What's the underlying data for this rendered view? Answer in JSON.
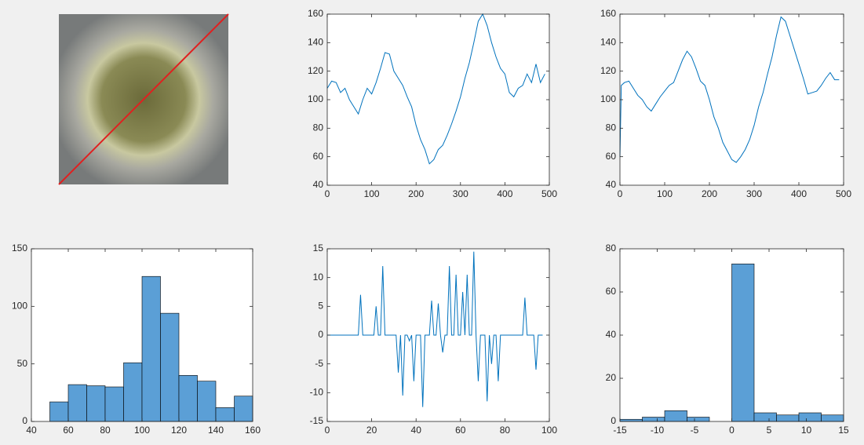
{
  "chart_data": [
    {
      "type": "line",
      "color": "#0072bd",
      "x": [
        0,
        10,
        20,
        30,
        40,
        50,
        60,
        70,
        80,
        90,
        100,
        110,
        120,
        130,
        140,
        150,
        160,
        170,
        180,
        190,
        200,
        210,
        220,
        230,
        240,
        250,
        260,
        270,
        280,
        290,
        300,
        310,
        320,
        330,
        340,
        350,
        360,
        370,
        380,
        390,
        400,
        410,
        420,
        430,
        440,
        450,
        460,
        470,
        480,
        490
      ],
      "values": [
        108,
        113,
        112,
        105,
        108,
        100,
        95,
        90,
        100,
        108,
        104,
        112,
        122,
        133,
        132,
        120,
        115,
        110,
        102,
        95,
        82,
        72,
        65,
        55,
        58,
        65,
        68,
        75,
        83,
        92,
        102,
        115,
        126,
        140,
        155,
        160,
        152,
        140,
        130,
        122,
        118,
        105,
        102,
        108,
        110,
        118,
        112,
        125,
        112,
        118
      ],
      "xlim": [
        0,
        500
      ],
      "xticks": [
        0,
        100,
        200,
        300,
        400,
        500
      ],
      "ylim": [
        40,
        160
      ],
      "yticks": [
        40,
        60,
        80,
        100,
        120,
        140,
        160
      ]
    },
    {
      "type": "line",
      "color": "#0072bd",
      "x": [
        0,
        3,
        10,
        20,
        30,
        40,
        50,
        60,
        70,
        80,
        90,
        100,
        110,
        120,
        130,
        140,
        150,
        160,
        170,
        180,
        190,
        200,
        210,
        220,
        230,
        240,
        250,
        260,
        270,
        280,
        290,
        300,
        310,
        320,
        330,
        340,
        350,
        360,
        370,
        380,
        390,
        400,
        410,
        420,
        430,
        440,
        450,
        460,
        470,
        480,
        490
      ],
      "values": [
        60,
        110,
        112,
        113,
        108,
        103,
        100,
        95,
        92,
        97,
        102,
        106,
        110,
        112,
        120,
        128,
        134,
        130,
        122,
        113,
        110,
        100,
        88,
        80,
        70,
        64,
        58,
        56,
        60,
        65,
        72,
        82,
        95,
        105,
        118,
        130,
        145,
        158,
        155,
        145,
        135,
        125,
        115,
        104,
        105,
        106,
        110,
        115,
        119,
        114,
        114
      ],
      "xlim": [
        0,
        500
      ],
      "xticks": [
        0,
        100,
        200,
        300,
        400,
        500
      ],
      "ylim": [
        40,
        160
      ],
      "yticks": [
        40,
        60,
        80,
        100,
        120,
        140,
        160
      ]
    },
    {
      "type": "histogram",
      "color": "#5b9fd6",
      "bins": [
        50,
        60,
        70,
        80,
        90,
        100,
        110,
        120,
        130,
        140,
        150,
        160
      ],
      "values": [
        17,
        32,
        31,
        30,
        51,
        126,
        94,
        40,
        35,
        12,
        22
      ],
      "xlim": [
        40,
        160
      ],
      "xticks": [
        40,
        60,
        80,
        100,
        120,
        140,
        160
      ],
      "ylim": [
        0,
        150
      ],
      "yticks": [
        0,
        50,
        100,
        150
      ]
    },
    {
      "type": "line",
      "color": "#0072bd",
      "x": [
        0,
        1,
        2,
        3,
        4,
        5,
        6,
        7,
        8,
        9,
        10,
        11,
        12,
        13,
        14,
        15,
        16,
        17,
        18,
        19,
        20,
        21,
        22,
        23,
        24,
        25,
        26,
        27,
        28,
        29,
        30,
        31,
        32,
        33,
        34,
        35,
        36,
        37,
        38,
        39,
        40,
        41,
        42,
        43,
        44,
        45,
        46,
        47,
        48,
        49,
        50,
        51,
        52,
        53,
        54,
        55,
        56,
        57,
        58,
        59,
        60,
        61,
        62,
        63,
        64,
        65,
        66,
        67,
        68,
        69,
        70,
        71,
        72,
        73,
        74,
        75,
        76,
        77,
        78,
        79,
        80,
        81,
        82,
        83,
        84,
        85,
        86,
        87,
        88,
        89,
        90,
        91,
        92,
        93,
        94,
        95,
        96,
        97
      ],
      "values": [
        0,
        0,
        0,
        0,
        0,
        0,
        0,
        0,
        0,
        0,
        0,
        0,
        0,
        0,
        0,
        7,
        0,
        0,
        0,
        0,
        0,
        0,
        5,
        0,
        0,
        12,
        0,
        0,
        0,
        0,
        0,
        0,
        -6.5,
        0,
        -10.5,
        0,
        0,
        -1,
        0,
        -8,
        0,
        0,
        0,
        -12.5,
        0,
        0,
        0,
        6,
        0,
        0,
        5.5,
        0,
        -3,
        0,
        0,
        12,
        0,
        0,
        10.5,
        0,
        0,
        7.5,
        0,
        10.5,
        0,
        0,
        14.5,
        0,
        -8,
        0,
        0,
        0,
        -11.5,
        0,
        -5,
        0,
        0,
        -8,
        0,
        0,
        0,
        0,
        0,
        0,
        0,
        0,
        0,
        0,
        0,
        6.5,
        0,
        0,
        0,
        0,
        -6,
        0,
        0,
        0
      ],
      "xlim": [
        0,
        100
      ],
      "xticks": [
        0,
        20,
        40,
        60,
        80,
        100
      ],
      "ylim": [
        -15,
        15
      ],
      "yticks": [
        -15,
        -10,
        -5,
        0,
        5,
        10,
        15
      ]
    },
    {
      "type": "histogram",
      "color": "#5b9fd6",
      "bins": [
        -15,
        -12,
        -9,
        -6,
        -3,
        0,
        3,
        6,
        9,
        12,
        15
      ],
      "values": [
        1,
        2,
        5,
        2,
        0,
        73,
        4,
        3,
        4,
        3
      ],
      "xlim": [
        -15,
        15
      ],
      "xticks": [
        -15,
        -10,
        -5,
        0,
        5,
        10,
        15
      ],
      "ylim": [
        0,
        80
      ],
      "yticks": [
        0,
        20,
        40,
        60,
        80
      ]
    }
  ]
}
